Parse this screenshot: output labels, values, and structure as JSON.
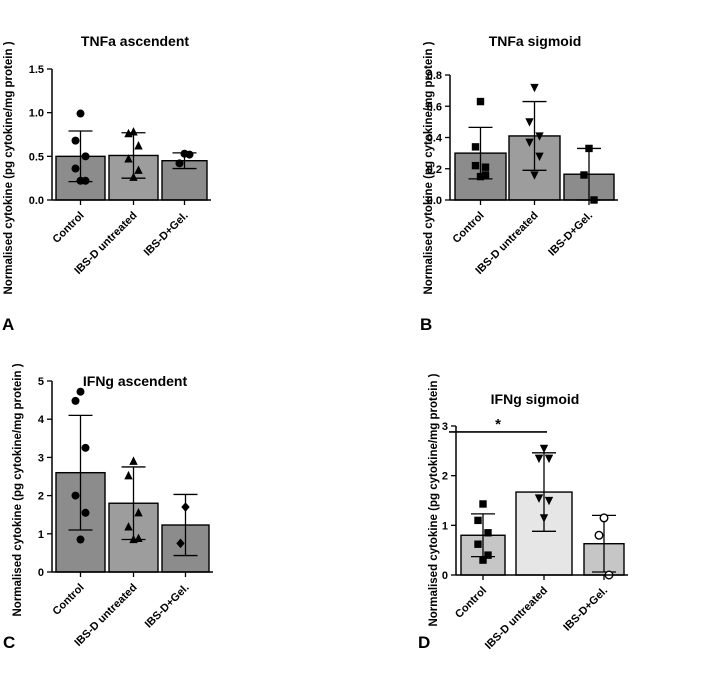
{
  "chart_data": [
    {
      "id": "A",
      "panel_label": "A",
      "type": "bar",
      "title": "TNFa ascendent",
      "ylabel": "Normalised cytokine (pg cytokine/mg protein )",
      "xlabel": "",
      "categories": [
        "Control",
        "IBS-D untreated",
        "IBS-D+Gel."
      ],
      "ylim": [
        0,
        1.5
      ],
      "yticks": [
        0,
        0.5,
        1,
        1.5
      ],
      "ytick_labels": [
        "0.0",
        "0.5",
        "1.0",
        "1.5"
      ],
      "values": [
        0.5,
        0.51,
        0.45
      ],
      "errors": [
        0.29,
        0.26,
        0.09
      ],
      "bar_colors": [
        "#8c8c8c",
        "#9d9d9d",
        "#8c8c8c"
      ],
      "markers": [
        "circle",
        "triangle",
        "circle"
      ],
      "points": [
        [
          0.99,
          0.68,
          0.5,
          0.36,
          0.22,
          0.22
        ],
        [
          0.78,
          0.76,
          0.62,
          0.47,
          0.34,
          0.26
        ],
        [
          0.53,
          0.42,
          0.52
        ]
      ],
      "significance": null
    },
    {
      "id": "B",
      "panel_label": "B",
      "type": "bar",
      "title": "TNFa sigmoid",
      "ylabel": "Normalised cytokine (pg cytokine/mg protein )",
      "xlabel": "",
      "categories": [
        "Control",
        "IBS-D untreated",
        "IBS-D+Gel."
      ],
      "ylim": [
        0,
        0.8
      ],
      "yticks": [
        0,
        0.2,
        0.4,
        0.6,
        0.8
      ],
      "ytick_labels": [
        "0.0",
        "0.2",
        "0.4",
        "0.6",
        "0.8"
      ],
      "values": [
        0.3,
        0.41,
        0.165
      ],
      "errors": [
        0.165,
        0.22,
        0.165
      ],
      "bar_colors": [
        "#8c8c8c",
        "#9d9d9d",
        "#8c8c8c"
      ],
      "markers": [
        "square",
        "triangle-down",
        "square"
      ],
      "points": [
        [
          0.63,
          0.34,
          0.21,
          0.22,
          0.16,
          0.15
        ],
        [
          0.72,
          0.5,
          0.41,
          0.37,
          0.28,
          0.16
        ],
        [
          0.33,
          0.16,
          0.0
        ]
      ],
      "significance": null
    },
    {
      "id": "C",
      "panel_label": "C",
      "type": "bar",
      "title": "IFNg ascendent",
      "ylabel": "Normalised cytokine (pg cytokine/mg protein )",
      "xlabel": "",
      "categories": [
        "Control",
        "IBS-D untreated",
        "IBS-D+Gel."
      ],
      "ylim": [
        0,
        5
      ],
      "yticks": [
        0,
        1,
        2,
        3,
        4,
        5
      ],
      "ytick_labels": [
        "0",
        "1",
        "2",
        "3",
        "4",
        "5"
      ],
      "values": [
        2.6,
        1.8,
        1.23
      ],
      "errors": [
        1.5,
        0.95,
        0.8
      ],
      "bar_colors": [
        "#8c8c8c",
        "#9d9d9d",
        "#8c8c8c"
      ],
      "markers": [
        "circle",
        "triangle",
        "diamond"
      ],
      "points": [
        [
          4.72,
          4.48,
          3.25,
          2.0,
          1.55,
          0.85
        ],
        [
          2.9,
          2.52,
          1.55,
          1.18,
          0.88,
          0.85
        ],
        [
          1.7,
          0.75
        ]
      ],
      "significance": null
    },
    {
      "id": "D",
      "panel_label": "D",
      "type": "bar",
      "title": "IFNg sigmoid",
      "ylabel": "Normalised cytokine (pg cytokine/mg protein )",
      "xlabel": "",
      "categories": [
        "Control",
        "IBS-D untreated",
        "IBS-D+Gel."
      ],
      "ylim": [
        0,
        3
      ],
      "yticks": [
        0,
        1,
        2,
        3
      ],
      "ytick_labels": [
        "0",
        "1",
        "2",
        "3"
      ],
      "values": [
        0.8,
        1.67,
        0.63
      ],
      "errors": [
        0.43,
        0.79,
        0.57
      ],
      "bar_colors": [
        "#c6c6c6",
        "#e6e6e6",
        "#c6c6c6"
      ],
      "markers": [
        "square",
        "triangle-down",
        "circle-open"
      ],
      "points": [
        [
          1.43,
          1.1,
          0.85,
          0.62,
          0.4,
          0.3
        ],
        [
          2.55,
          2.35,
          2.35,
          1.55,
          1.5,
          1.15
        ],
        [
          1.15,
          0.8,
          0.0
        ]
      ],
      "significance": {
        "from": 0,
        "to": 1,
        "value": 2.88,
        "label": "*"
      }
    }
  ]
}
